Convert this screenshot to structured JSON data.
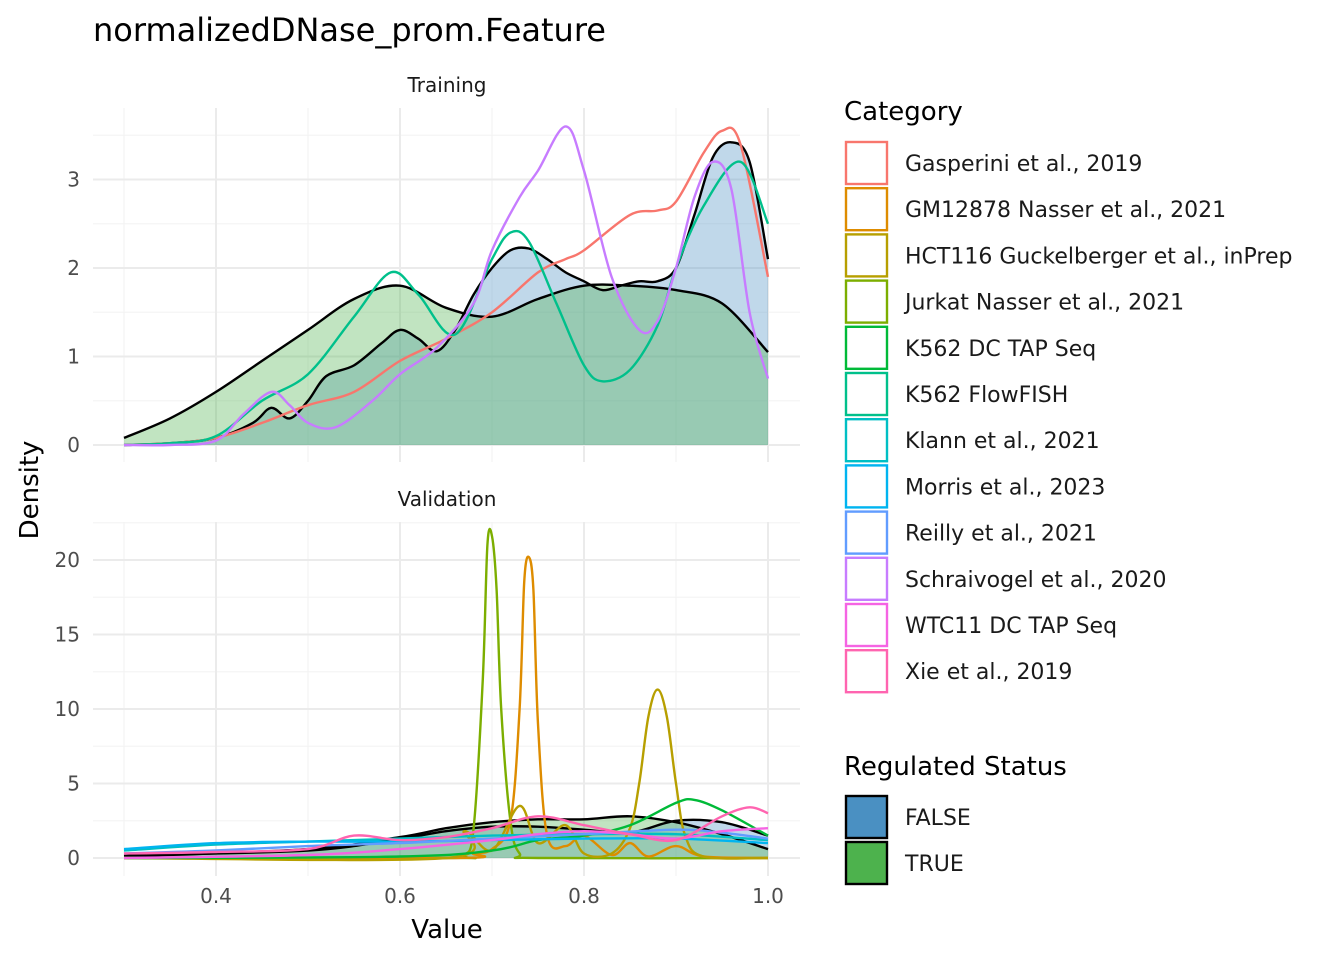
{
  "chart_data": {
    "type": "area",
    "title": "normalizedDNase_prom.Feature",
    "xlabel": "Value",
    "ylabel": "Density",
    "xlim": [
      0.3,
      1.0
    ],
    "x_ticks": [
      "0.4",
      "0.6",
      "0.8",
      "1.0"
    ],
    "legend_placement": "right",
    "grid": true,
    "panels": [
      {
        "name": "Training",
        "ylim": [
          0,
          3.8
        ],
        "y_ticks": [
          "0",
          "1",
          "2",
          "3"
        ],
        "regulated_status_densities": [
          {
            "status": "FALSE",
            "x": [
              0.3,
              0.35,
              0.4,
              0.44,
              0.46,
              0.48,
              0.5,
              0.52,
              0.55,
              0.58,
              0.6,
              0.62,
              0.64,
              0.66,
              0.68,
              0.7,
              0.72,
              0.74,
              0.76,
              0.78,
              0.8,
              0.82,
              0.84,
              0.86,
              0.88,
              0.9,
              0.92,
              0.94,
              0.96,
              0.98,
              1.0
            ],
            "y": [
              0,
              0.02,
              0.08,
              0.25,
              0.42,
              0.3,
              0.5,
              0.78,
              0.9,
              1.15,
              1.3,
              1.2,
              1.06,
              1.3,
              1.7,
              2.0,
              2.2,
              2.22,
              2.1,
              1.95,
              1.85,
              1.75,
              1.8,
              1.85,
              1.85,
              2.0,
              2.6,
              3.25,
              3.42,
              3.2,
              2.1
            ]
          },
          {
            "status": "TRUE",
            "x": [
              0.3,
              0.35,
              0.4,
              0.45,
              0.5,
              0.55,
              0.6,
              0.65,
              0.7,
              0.75,
              0.8,
              0.85,
              0.9,
              0.95,
              1.0
            ],
            "y": [
              0.08,
              0.3,
              0.6,
              0.95,
              1.3,
              1.65,
              1.8,
              1.55,
              1.45,
              1.65,
              1.8,
              1.8,
              1.75,
              1.6,
              1.05
            ]
          }
        ],
        "category_densities": [
          {
            "category": "Gasperini et al., 2019",
            "x": [
              0.3,
              0.35,
              0.4,
              0.45,
              0.5,
              0.55,
              0.6,
              0.65,
              0.7,
              0.75,
              0.78,
              0.8,
              0.85,
              0.88,
              0.9,
              0.93,
              0.95,
              0.97,
              1.0
            ],
            "y": [
              0,
              0.02,
              0.08,
              0.25,
              0.45,
              0.6,
              0.95,
              1.2,
              1.5,
              1.95,
              2.1,
              2.2,
              2.6,
              2.65,
              2.75,
              3.3,
              3.55,
              3.4,
              1.9
            ]
          },
          {
            "category": "K562 FlowFISH",
            "x": [
              0.3,
              0.35,
              0.4,
              0.45,
              0.5,
              0.55,
              0.59,
              0.62,
              0.66,
              0.7,
              0.72,
              0.74,
              0.77,
              0.8,
              0.82,
              0.85,
              0.88,
              0.9,
              0.93,
              0.97,
              1.0
            ],
            "y": [
              0,
              0.02,
              0.1,
              0.5,
              0.8,
              1.45,
              1.95,
              1.7,
              1.25,
              2.1,
              2.4,
              2.3,
              1.6,
              0.9,
              0.72,
              0.85,
              1.35,
              2.0,
              2.7,
              3.2,
              2.5
            ]
          },
          {
            "category": "Schraivogel et al., 2020",
            "x": [
              0.3,
              0.35,
              0.4,
              0.43,
              0.46,
              0.48,
              0.5,
              0.53,
              0.57,
              0.6,
              0.64,
              0.68,
              0.7,
              0.73,
              0.75,
              0.78,
              0.8,
              0.83,
              0.86,
              0.88,
              0.9,
              0.92,
              0.94,
              0.96,
              0.98,
              1.0
            ],
            "y": [
              0,
              0,
              0.05,
              0.35,
              0.6,
              0.45,
              0.25,
              0.2,
              0.5,
              0.8,
              1.1,
              1.6,
              2.2,
              2.8,
              3.1,
              3.6,
              3.1,
              1.9,
              1.3,
              1.4,
              2.0,
              2.8,
              3.2,
              2.9,
              1.5,
              0.75
            ]
          }
        ]
      },
      {
        "name": "Validation",
        "ylim": [
          0,
          22.5
        ],
        "y_ticks": [
          "0",
          "5",
          "10",
          "15",
          "20"
        ],
        "regulated_status_densities": [
          {
            "status": "FALSE",
            "x": [
              0.3,
              0.5,
              0.6,
              0.65,
              0.7,
              0.75,
              0.8,
              0.85,
              0.9,
              0.95,
              1.0
            ],
            "y": [
              0.2,
              0.5,
              1.3,
              1.8,
              2.1,
              2.1,
              1.9,
              1.7,
              2.5,
              2.4,
              1.5
            ]
          },
          {
            "status": "TRUE",
            "x": [
              0.3,
              0.5,
              0.6,
              0.65,
              0.7,
              0.75,
              0.8,
              0.85,
              0.9,
              0.95,
              1.0
            ],
            "y": [
              0.1,
              0.6,
              1.4,
              2.0,
              2.4,
              2.6,
              2.6,
              2.8,
              2.4,
              1.6,
              0.6
            ]
          }
        ],
        "category_densities": [
          {
            "category": "Jurkat Nasser et al., 2021",
            "x": [
              0.3,
              0.65,
              0.67,
              0.68,
              0.69,
              0.695,
              0.7,
              0.705,
              0.71,
              0.72,
              0.73,
              0.75,
              1.0
            ],
            "y": [
              0,
              0,
              0.2,
              2.0,
              12.0,
              21.0,
              21.6,
              18.0,
              10.0,
              2.5,
              0.3,
              0,
              0
            ]
          },
          {
            "category": "GM12878 Nasser et al., 2021",
            "x": [
              0.3,
              0.66,
              0.68,
              0.7,
              0.72,
              0.73,
              0.735,
              0.74,
              0.745,
              0.75,
              0.76,
              0.78,
              0.8,
              0.83,
              0.85,
              0.87,
              0.9,
              0.93,
              1.0
            ],
            "y": [
              0,
              0,
              0.3,
              0.6,
              2.5,
              10.0,
              18.5,
              20.2,
              18.0,
              9.0,
              1.5,
              0.8,
              1.5,
              0.2,
              1.0,
              0.1,
              0.8,
              0.1,
              0
            ]
          },
          {
            "category": "HCT116 Guckelberger et al., inPrep",
            "x": [
              0.3,
              0.65,
              0.67,
              0.7,
              0.73,
              0.75,
              0.78,
              0.8,
              0.83,
              0.85,
              0.86,
              0.87,
              0.88,
              0.89,
              0.9,
              0.91,
              0.93,
              1.0
            ],
            "y": [
              0,
              0,
              1.8,
              0.5,
              3.5,
              1.0,
              2.2,
              0.3,
              0.3,
              2.0,
              5.0,
              9.5,
              11.3,
              9.5,
              5.0,
              1.5,
              0.1,
              0
            ]
          },
          {
            "category": "K562 DC TAP Seq",
            "x": [
              0.3,
              0.6,
              0.7,
              0.75,
              0.8,
              0.85,
              0.9,
              0.92,
              0.95,
              1.0
            ],
            "y": [
              0,
              0.1,
              0.5,
              1.2,
              1.5,
              2.2,
              3.7,
              3.9,
              3.2,
              1.5
            ]
          },
          {
            "category": "Klann et al., 2021",
            "x": [
              0.3,
              0.4,
              0.5,
              0.6,
              0.7,
              0.8,
              0.9,
              1.0
            ],
            "y": [
              0.5,
              0.9,
              1.1,
              1.3,
              1.5,
              1.6,
              1.6,
              1.2
            ]
          },
          {
            "category": "Morris et al., 2023",
            "x": [
              0.3,
              0.4,
              0.5,
              0.6,
              0.7,
              0.8,
              0.9,
              1.0
            ],
            "y": [
              0.6,
              1.0,
              1.1,
              1.1,
              1.2,
              1.3,
              1.3,
              1.0
            ]
          },
          {
            "category": "Reilly et al., 2021",
            "x": [
              0.3,
              0.4,
              0.5,
              0.6,
              0.7,
              0.8,
              0.9,
              0.95,
              1.0
            ],
            "y": [
              0.3,
              0.5,
              0.8,
              1.0,
              1.3,
              1.6,
              1.9,
              1.7,
              1.3
            ]
          },
          {
            "category": "WTC11 DC TAP Seq",
            "x": [
              0.3,
              0.5,
              0.6,
              0.7,
              0.75,
              0.8,
              0.85,
              0.9,
              0.95,
              1.0
            ],
            "y": [
              0,
              0.2,
              0.6,
              1.2,
              1.6,
              1.8,
              1.6,
              1.3,
              1.8,
              2.0
            ]
          },
          {
            "category": "Xie et al., 2019",
            "x": [
              0.3,
              0.4,
              0.5,
              0.55,
              0.6,
              0.65,
              0.7,
              0.75,
              0.8,
              0.85,
              0.9,
              0.95,
              0.98,
              1.0
            ],
            "y": [
              0.3,
              0.4,
              0.6,
              1.5,
              1.2,
              1.4,
              2.0,
              2.8,
              2.2,
              1.6,
              1.2,
              2.8,
              3.4,
              3.0
            ]
          }
        ]
      }
    ],
    "legends": {
      "category": {
        "title": "Category",
        "items": [
          {
            "label": "Gasperini et al., 2019",
            "color": "#F8766D"
          },
          {
            "label": "GM12878 Nasser et al., 2021",
            "color": "#DE8C00"
          },
          {
            "label": "HCT116 Guckelberger et al., inPrep",
            "color": "#B79F00"
          },
          {
            "label": "Jurkat Nasser et al., 2021",
            "color": "#7CAE00"
          },
          {
            "label": "K562 DC TAP Seq",
            "color": "#00BA38"
          },
          {
            "label": "K562 FlowFISH",
            "color": "#00C08B"
          },
          {
            "label": "Klann et al., 2021",
            "color": "#00BFC4"
          },
          {
            "label": "Morris et al., 2023",
            "color": "#00B4F0"
          },
          {
            "label": "Reilly et al., 2021",
            "color": "#619CFF"
          },
          {
            "label": "Schraivogel et al., 2020",
            "color": "#C77CFF"
          },
          {
            "label": "WTC11 DC TAP Seq",
            "color": "#F564E3"
          },
          {
            "label": "Xie et al., 2019",
            "color": "#FF64B0"
          }
        ]
      },
      "regulated_status": {
        "title": "Regulated Status",
        "items": [
          {
            "label": "FALSE",
            "color": "#4A90C2"
          },
          {
            "label": "TRUE",
            "color": "#4DB24D"
          }
        ]
      }
    }
  }
}
